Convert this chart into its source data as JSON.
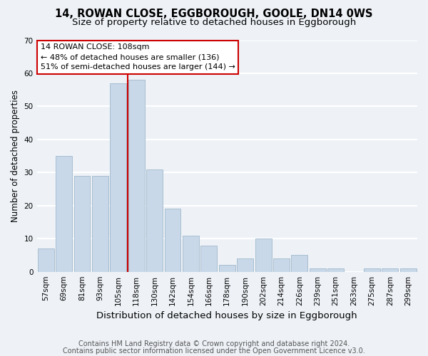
{
  "title": "14, ROWAN CLOSE, EGGBOROUGH, GOOLE, DN14 0WS",
  "subtitle": "Size of property relative to detached houses in Eggborough",
  "xlabel": "Distribution of detached houses by size in Eggborough",
  "ylabel": "Number of detached properties",
  "bar_labels": [
    "57sqm",
    "69sqm",
    "81sqm",
    "93sqm",
    "105sqm",
    "118sqm",
    "130sqm",
    "142sqm",
    "154sqm",
    "166sqm",
    "178sqm",
    "190sqm",
    "202sqm",
    "214sqm",
    "226sqm",
    "239sqm",
    "251sqm",
    "263sqm",
    "275sqm",
    "287sqm",
    "299sqm"
  ],
  "bar_values": [
    7,
    35,
    29,
    29,
    57,
    58,
    31,
    19,
    11,
    8,
    2,
    4,
    10,
    4,
    5,
    1,
    1,
    0,
    1,
    1,
    1
  ],
  "bar_color": "#c8d8e8",
  "bar_edgecolor": "#a0b8cc",
  "property_line_label": "14 ROWAN CLOSE: 108sqm",
  "annotation_line1": "← 48% of detached houses are smaller (136)",
  "annotation_line2": "51% of semi-detached houses are larger (144) →",
  "vline_color": "#cc0000",
  "vline_pos": 4.5,
  "ylim": [
    0,
    70
  ],
  "yticks": [
    0,
    10,
    20,
    30,
    40,
    50,
    60,
    70
  ],
  "footnote1": "Contains HM Land Registry data © Crown copyright and database right 2024.",
  "footnote2": "Contains public sector information licensed under the Open Government Licence v3.0.",
  "bg_color": "#eef2f7",
  "plot_bg_color": "#eef2f7",
  "grid_color": "#ffffff",
  "title_fontsize": 10.5,
  "subtitle_fontsize": 9.5,
  "xlabel_fontsize": 9.5,
  "ylabel_fontsize": 8.5,
  "tick_fontsize": 7.5,
  "annotation_fontsize": 8,
  "footnote_fontsize": 7
}
